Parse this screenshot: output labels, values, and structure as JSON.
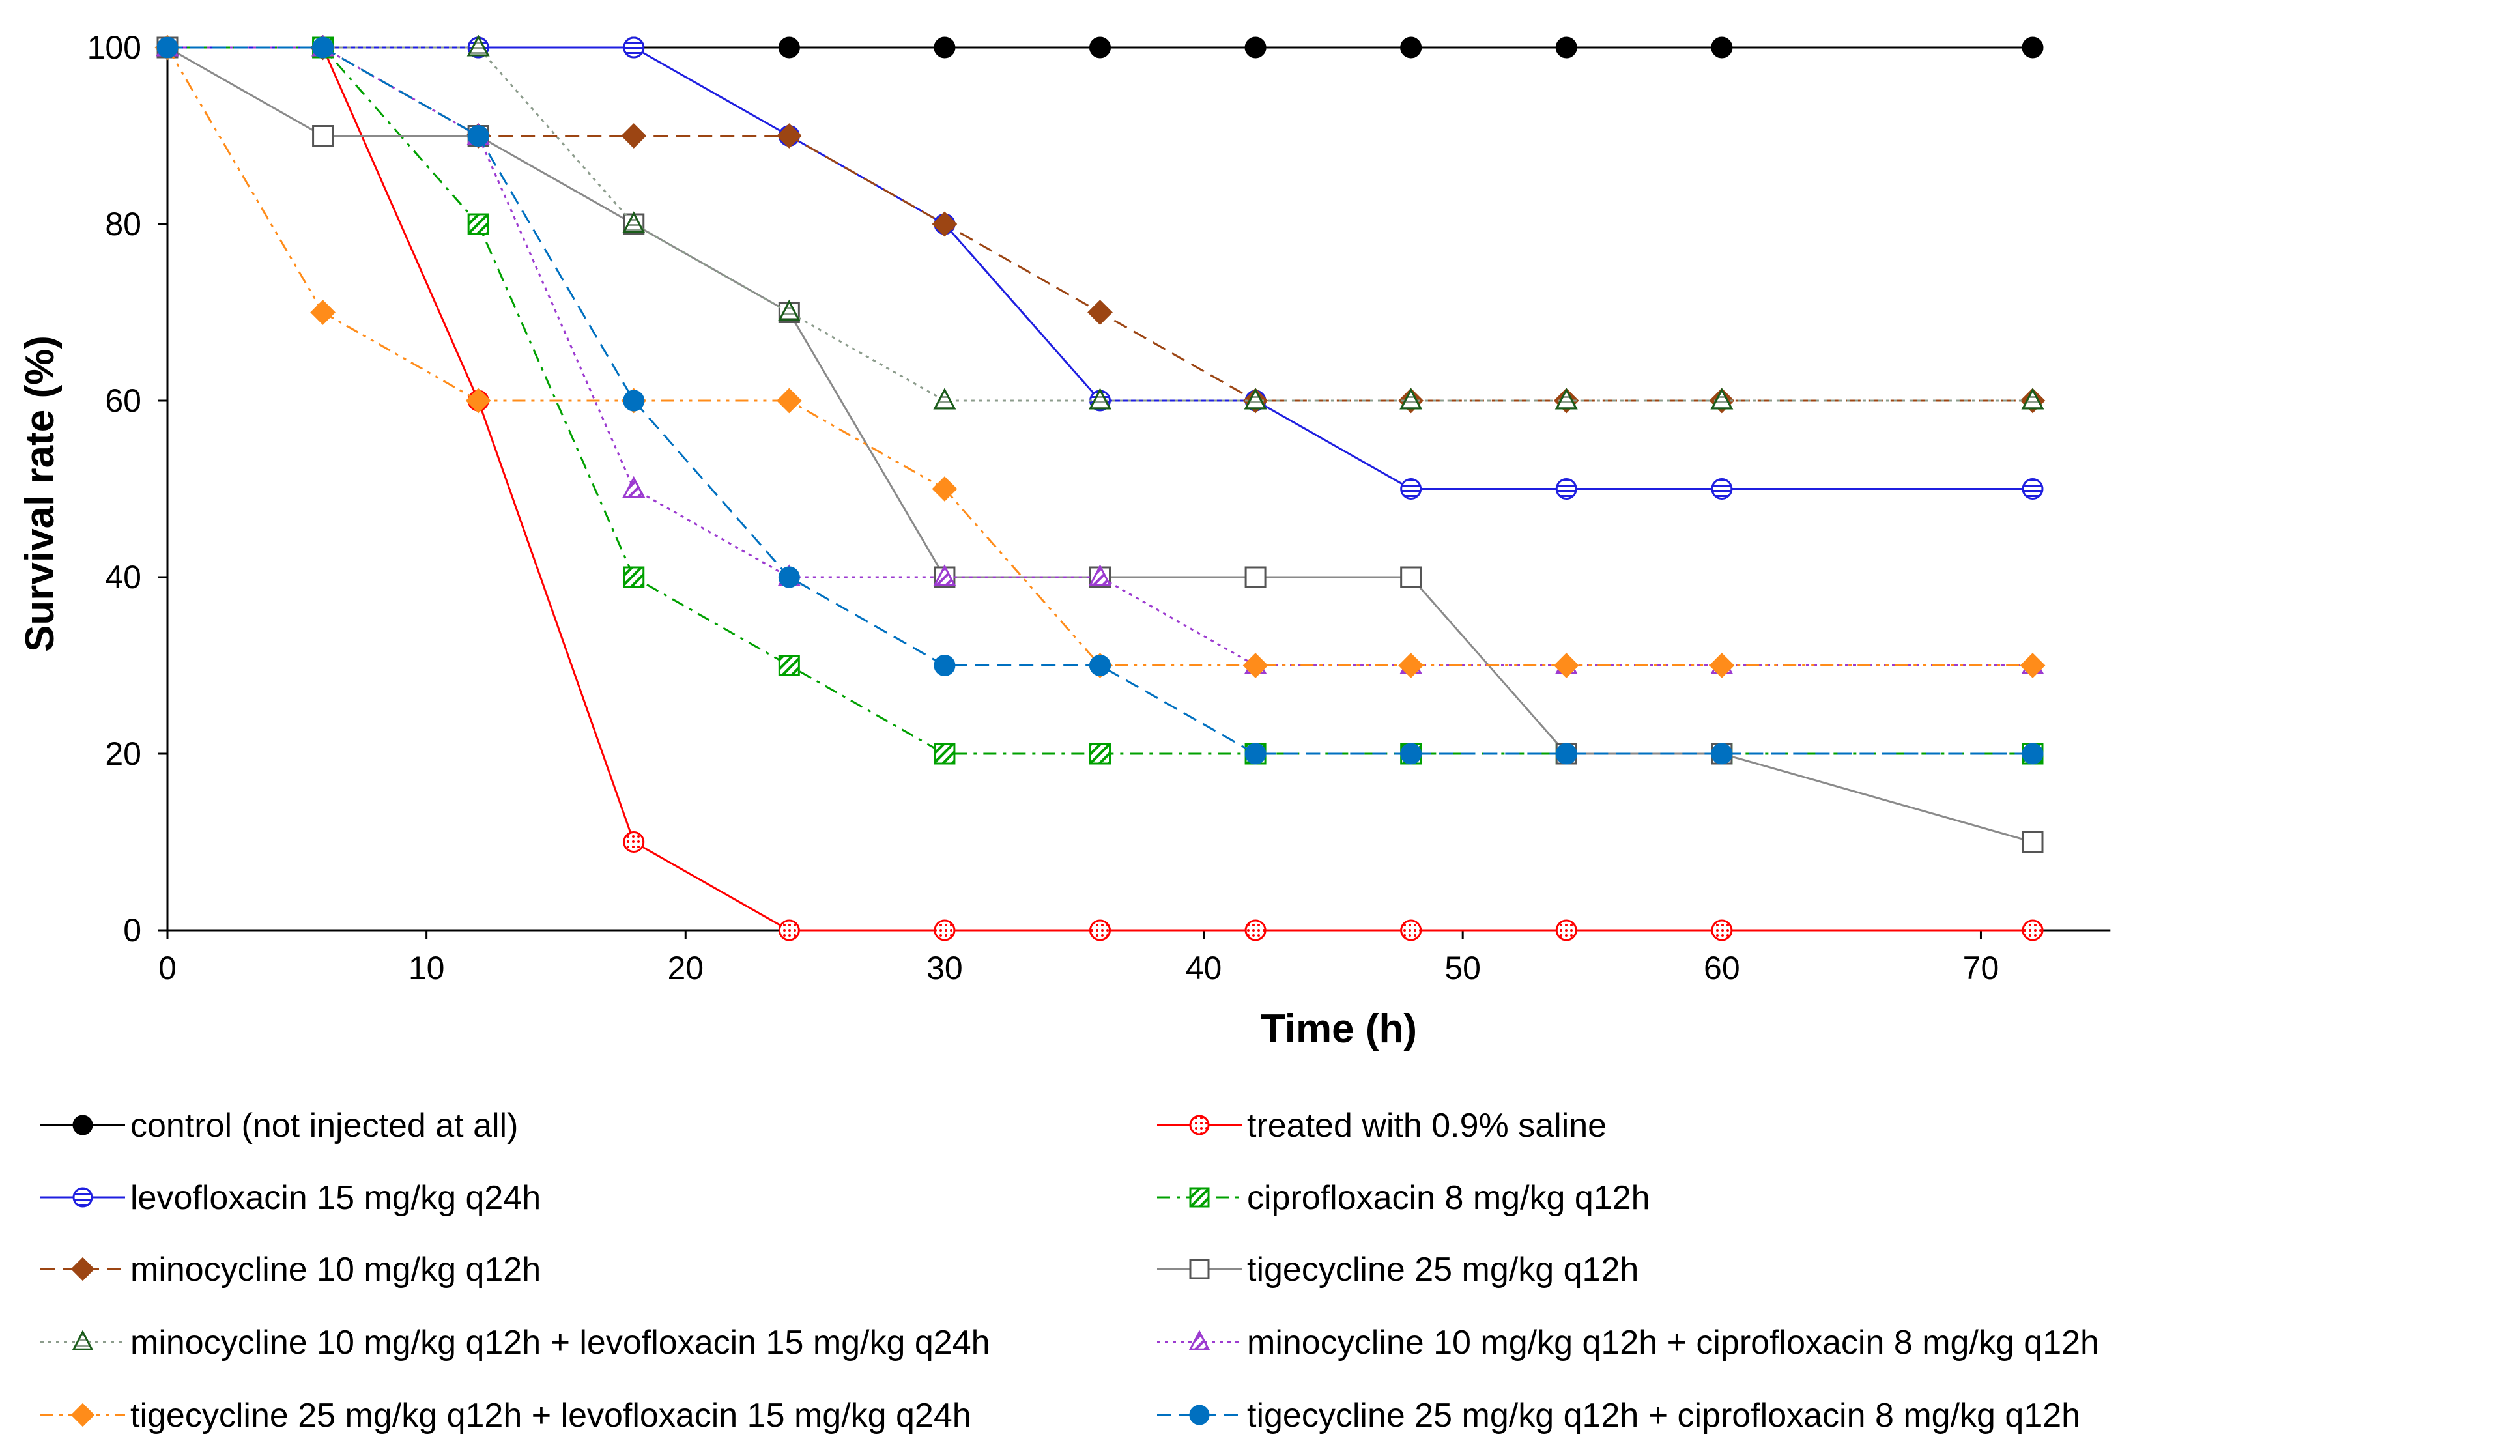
{
  "chart_data": {
    "type": "line",
    "title": "",
    "xlabel": "Time (h)",
    "ylabel": "Survival rate (%)",
    "xlim": [
      0,
      75
    ],
    "ylim": [
      0,
      100
    ],
    "xticks": [
      0,
      10,
      20,
      30,
      40,
      50,
      60,
      70
    ],
    "yticks": [
      0,
      20,
      40,
      60,
      80,
      100
    ],
    "x": [
      0,
      6,
      12,
      18,
      24,
      30,
      36,
      42,
      48,
      54,
      60,
      72
    ],
    "grid": false,
    "legend_position": "bottom",
    "series": [
      {
        "id": "control",
        "name": "control (not injected at all)",
        "color": "#000000",
        "dash": "solid",
        "marker": "filled-circle",
        "values": [
          100,
          100,
          100,
          100,
          100,
          100,
          100,
          100,
          100,
          100,
          100,
          100
        ]
      },
      {
        "id": "saline",
        "name": "treated with 0.9% saline",
        "color": "#ff0000",
        "dash": "solid",
        "marker": "dotted-circle",
        "values": [
          100,
          100,
          60,
          10,
          0,
          0,
          0,
          0,
          0,
          0,
          0,
          0
        ]
      },
      {
        "id": "levo",
        "name": "levofloxacin 15 mg/kg q24h",
        "color": "#1f1fe0",
        "dash": "solid",
        "marker": "striped-circle",
        "values": [
          100,
          100,
          100,
          100,
          90,
          80,
          60,
          60,
          50,
          50,
          50,
          50
        ]
      },
      {
        "id": "cipro",
        "name": "ciprofloxacin 8 mg/kg q12h",
        "color": "#00a000",
        "dash": "dash-dot",
        "marker": "hatched-square",
        "values": [
          100,
          100,
          80,
          40,
          30,
          20,
          20,
          20,
          20,
          20,
          20,
          20
        ]
      },
      {
        "id": "mino",
        "name": "minocycline 10 mg/kg q12h",
        "color": "#9c4513",
        "dash": "dashed",
        "marker": "filled-diamond",
        "values": [
          100,
          100,
          90,
          90,
          90,
          80,
          70,
          60,
          60,
          60,
          60,
          60
        ]
      },
      {
        "id": "tige",
        "name": "tigecycline 25 mg/kg q12h",
        "color": "#8a8a8a",
        "dash": "solid",
        "marker": "open-square",
        "values": [
          100,
          90,
          90,
          80,
          70,
          40,
          40,
          40,
          40,
          20,
          20,
          10
        ]
      },
      {
        "id": "mino_levo",
        "name": "minocycline 10 mg/kg q12h + levofloxacin 15 mg/kg q24h",
        "color": "#8c9c8c",
        "dash": "dotted",
        "marker": "striped-triangle",
        "values": [
          100,
          100,
          100,
          80,
          70,
          60,
          60,
          60,
          60,
          60,
          60,
          60
        ]
      },
      {
        "id": "mino_cipro",
        "name": "minocycline 10 mg/kg q12h + ciprofloxacin 8 mg/kg q12h",
        "color": "#9c3bd0",
        "dash": "dotted",
        "marker": "hatched-triangle",
        "values": [
          100,
          100,
          90,
          50,
          40,
          40,
          40,
          30,
          30,
          30,
          30,
          30
        ]
      },
      {
        "id": "tige_levo",
        "name": "tigecycline 25 mg/kg q12h + levofloxacin 15 mg/kg q24h",
        "color": "#ff8c1a",
        "dash": "dash-dot-dot",
        "marker": "filled-diamond",
        "values": [
          100,
          70,
          60,
          60,
          60,
          50,
          30,
          30,
          30,
          30,
          30,
          30
        ]
      },
      {
        "id": "tige_cipro",
        "name": "tigecycline 25 mg/kg q12h + ciprofloxacin 8 mg/kg q12h",
        "color": "#0070c0",
        "dash": "dashed",
        "marker": "filled-circle",
        "values": [
          100,
          100,
          90,
          60,
          40,
          30,
          30,
          20,
          20,
          20,
          20,
          20
        ]
      }
    ],
    "legend_order": [
      "control",
      "saline",
      "levo",
      "cipro",
      "mino",
      "tige",
      "mino_levo",
      "mino_cipro",
      "tige_levo",
      "tige_cipro"
    ]
  }
}
